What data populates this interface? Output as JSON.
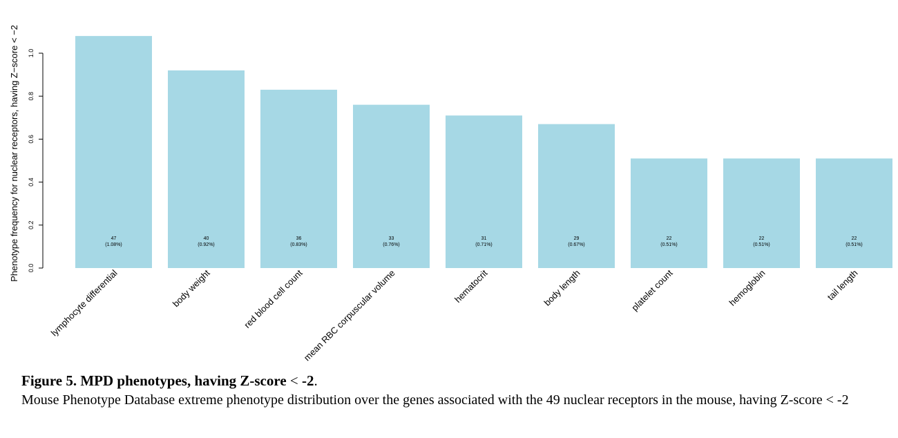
{
  "chart_data": {
    "type": "bar",
    "ylabel": "Phenotype frequency for nuclear receptors, having Z−score < −2",
    "ylim": [
      0,
      1.08
    ],
    "yticks": [
      0.0,
      0.2,
      0.4,
      0.6,
      0.8,
      1.0
    ],
    "ytick_labels": [
      "0.0",
      "0.2",
      "0.4",
      "0.6",
      "0.8",
      "1.0"
    ],
    "bar_color": "#a6d8e5",
    "categories": [
      "lymphocyte differential",
      "body weight",
      "red blood cell count",
      "mean RBC corpuscular volume",
      "hematocrit",
      "body length",
      "platelet count",
      "hemoglobin",
      "tail length"
    ],
    "values": [
      1.08,
      0.92,
      0.83,
      0.76,
      0.71,
      0.67,
      0.51,
      0.51,
      0.51
    ],
    "counts": [
      "47",
      "40",
      "36",
      "33",
      "31",
      "29",
      "22",
      "22",
      "22"
    ],
    "percent_labels": [
      "(1.08%)",
      "(0.92%)",
      "(0.83%)",
      "(0.76%)",
      "(0.71%)",
      "(0.67%)",
      "(0.51%)",
      "(0.51%)",
      "(0.51%)"
    ],
    "grid": false
  },
  "caption": {
    "title_bold": "Figure 5. MPD phenotypes, having Z-score",
    "title_lt": " < ",
    "title_bold2": "-2",
    "title_end": ".",
    "body": "Mouse Phenotype Database extreme phenotype distribution over the genes associated with the 49 nuclear receptors in the mouse, having Z-score < -2"
  }
}
